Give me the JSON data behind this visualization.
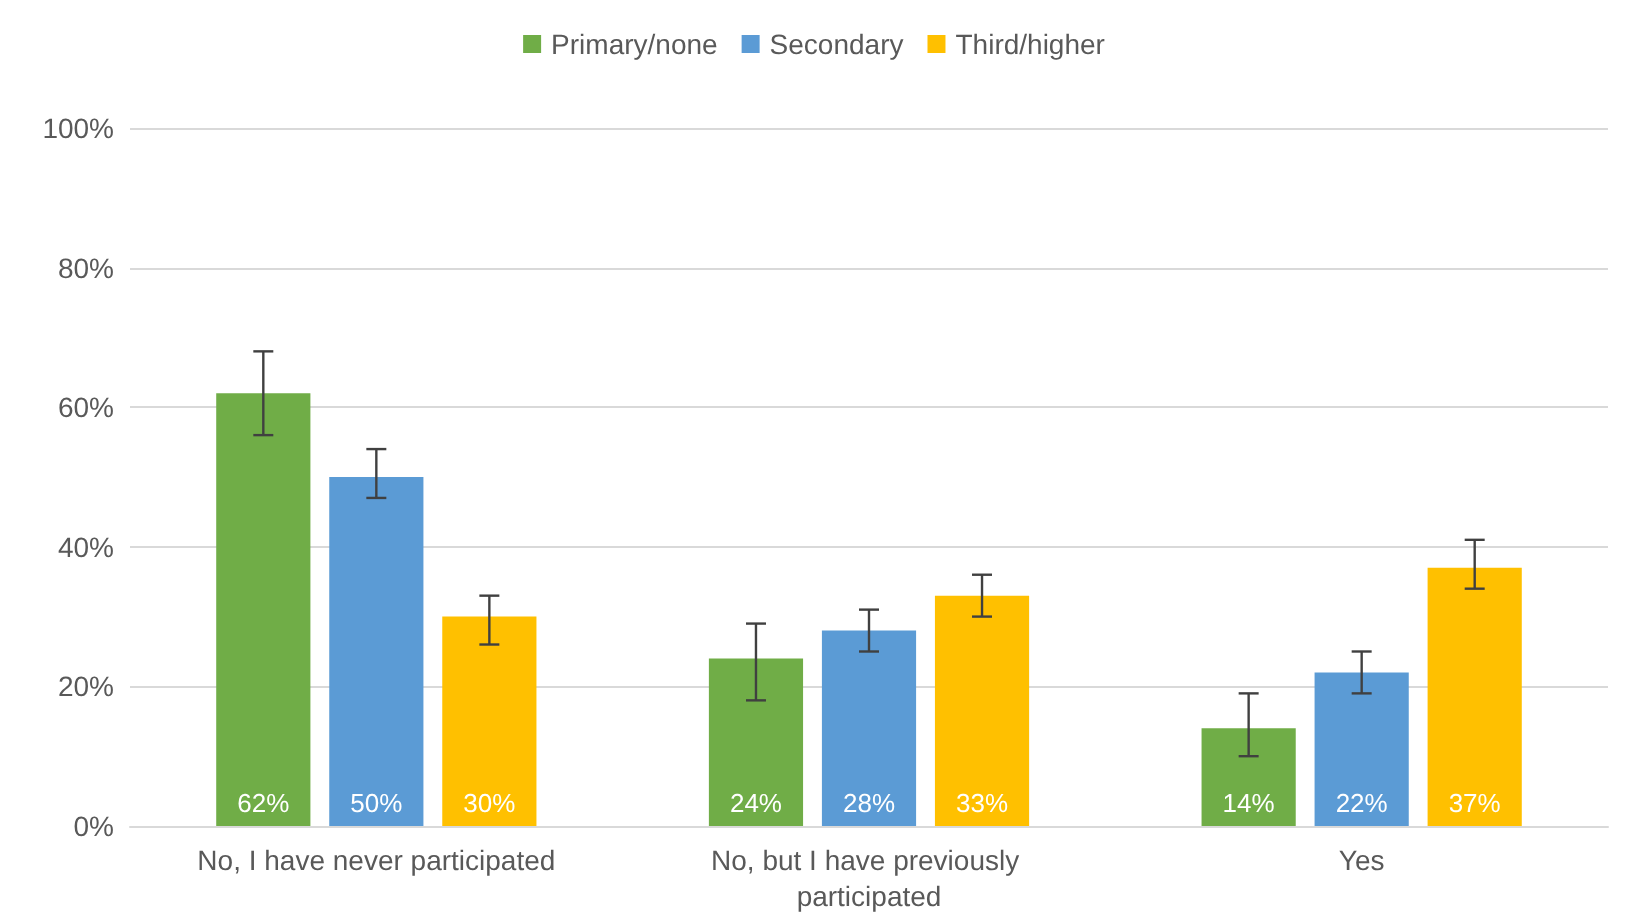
{
  "chart_data": {
    "type": "bar",
    "categories": [
      "No, I have never participated",
      "No, but I have previously participated",
      "Yes"
    ],
    "series": [
      {
        "name": "Primary/none",
        "color": "#70ad47",
        "values": [
          62,
          24,
          14
        ],
        "value_labels": [
          "62%",
          "24%",
          "14%"
        ],
        "errors": [
          [
            56,
            68
          ],
          [
            18,
            29
          ],
          [
            10,
            19
          ]
        ]
      },
      {
        "name": "Secondary",
        "color": "#5b9bd5",
        "values": [
          50,
          28,
          22
        ],
        "value_labels": [
          "50%",
          "28%",
          "22%"
        ],
        "errors": [
          [
            47,
            54
          ],
          [
            25,
            31
          ],
          [
            19,
            25
          ]
        ]
      },
      {
        "name": "Third/higher",
        "color": "#ffc000",
        "values": [
          30,
          33,
          37
        ],
        "value_labels": [
          "30%",
          "33%",
          "37%"
        ],
        "errors": [
          [
            26,
            33
          ],
          [
            30,
            36
          ],
          [
            34,
            41
          ]
        ]
      }
    ],
    "ylim": [
      0,
      100
    ],
    "yticks": [
      {
        "value": 0,
        "label": "0%"
      },
      {
        "value": 20,
        "label": "20%"
      },
      {
        "value": 40,
        "label": "40%"
      },
      {
        "value": 60,
        "label": "60%"
      },
      {
        "value": 80,
        "label": "80%"
      },
      {
        "value": 100,
        "label": "100%"
      }
    ],
    "grid": "y",
    "legend": "top"
  }
}
